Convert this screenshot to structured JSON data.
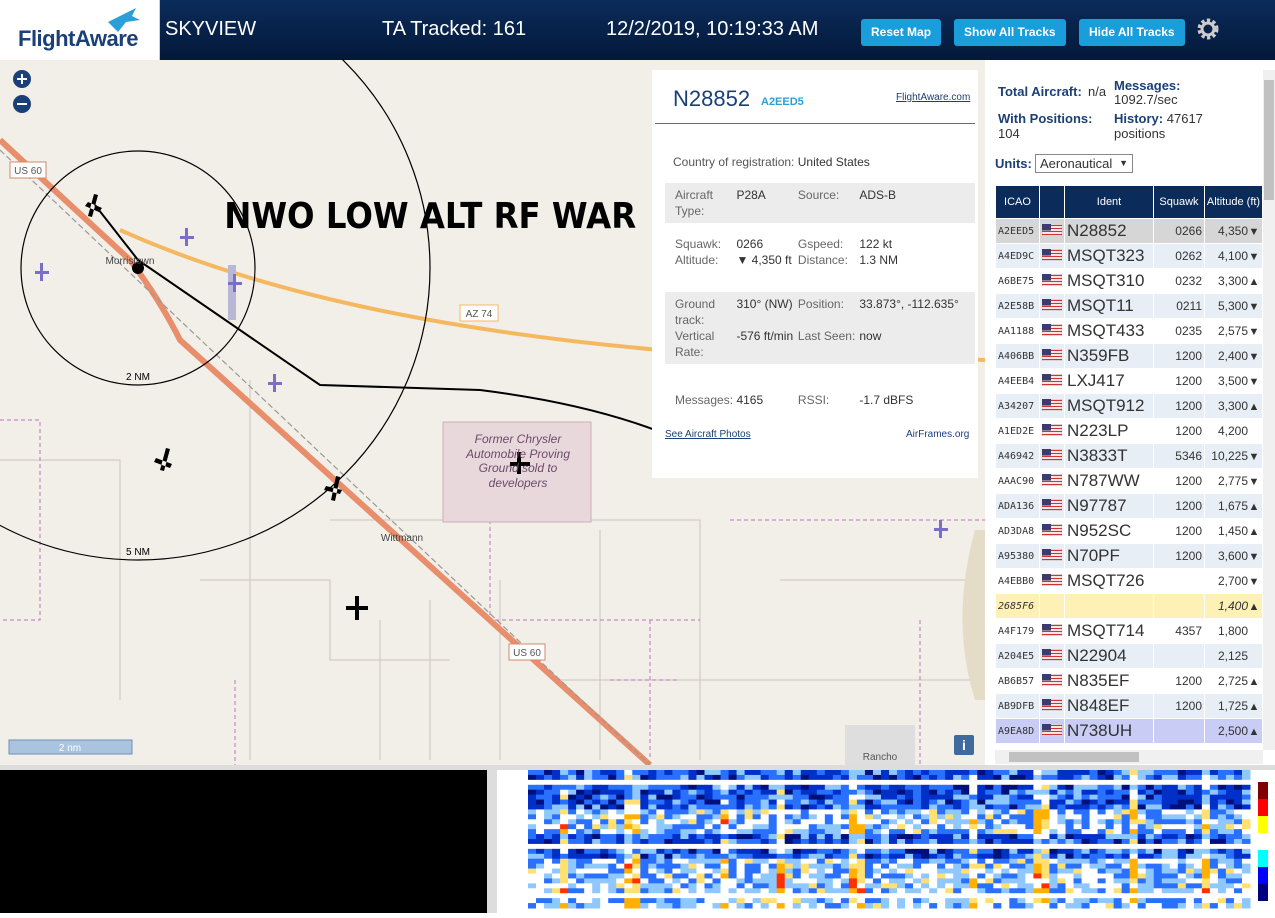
{
  "header": {
    "logo": "FlightAware",
    "app_name": "SKYVIEW",
    "tracked": "TA Tracked: 161",
    "datetime": "12/2/2019, 10:19:33 AM",
    "buttons": [
      "Reset Map",
      "Show All Tracks",
      "Hide All Tracks"
    ]
  },
  "map": {
    "overlay_text": "NWO LOW ALT RF WAR",
    "labels": {
      "us60_north": "US 60",
      "town": "Morristown",
      "ring_small": "2 NM",
      "ring_large": "5 NM",
      "az74": "AZ 74",
      "proving_ground": "Former Chrysler Automobile Proving Ground sold to developers",
      "wittmann": "Wittmann",
      "us60_south": "US 60",
      "rancho": "Rancho"
    },
    "scale": "2 nm",
    "info_button": "i"
  },
  "aircraft_info": {
    "registration": "N28852",
    "hex": "A2EED5",
    "link": "FlightAware.com",
    "country_label": "Country of registration:",
    "country": "United States",
    "fields": [
      [
        "Aircraft Type:",
        "P28A",
        "Source:",
        "ADS-B"
      ],
      [
        "Squawk:",
        "0266",
        "Gspeed:",
        "122 kt"
      ],
      [
        "Altitude:",
        "▼ 4,350 ft",
        "Distance:",
        "1.3 NM"
      ],
      [
        "Ground track:",
        "310° (NW)",
        "Position:",
        "33.873°, -112.635°"
      ],
      [
        "Vertical Rate:",
        "-576 ft/min",
        "Last Seen:",
        "now"
      ],
      [
        "Messages:",
        "4165",
        "RSSI:",
        "-1.7 dBFS"
      ]
    ],
    "photos_link": "See Aircraft Photos",
    "airframes_link": "AirFrames.org"
  },
  "stats": {
    "total_label": "Total Aircraft:",
    "total": "n/a",
    "messages_label": "Messages:",
    "messages": "1092.7/sec",
    "positions_label": "With Positions:",
    "positions": "104",
    "history_label": "History:",
    "history": "47617 positions",
    "units_label": "Units:",
    "units": "Aeronautical"
  },
  "table": {
    "headers": [
      "ICAO",
      "Ident",
      "Squawk",
      "Altitude (ft)"
    ],
    "rows": [
      {
        "icao": "A2EED5",
        "ident": "N28852",
        "squawk": "0266",
        "altitude": "4,350",
        "trend": "▼"
      },
      {
        "icao": "A4ED9C",
        "ident": "MSQT323",
        "squawk": "0262",
        "altitude": "4,100",
        "trend": "▼"
      },
      {
        "icao": "A6BE75",
        "ident": "MSQT310",
        "squawk": "0232",
        "altitude": "3,300",
        "trend": "▲"
      },
      {
        "icao": "A2E58B",
        "ident": "MSQT11",
        "squawk": "0211",
        "altitude": "5,300",
        "trend": "▼"
      },
      {
        "icao": "AA1188",
        "ident": "MSQT433",
        "squawk": "0235",
        "altitude": "2,575",
        "trend": "▼"
      },
      {
        "icao": "A406BB",
        "ident": "N359FB",
        "squawk": "1200",
        "altitude": "2,400",
        "trend": "▼"
      },
      {
        "icao": "A4EEB4",
        "ident": "LXJ417",
        "squawk": "1200",
        "altitude": "3,500",
        "trend": "▼"
      },
      {
        "icao": "A34207",
        "ident": "MSQT912",
        "squawk": "1200",
        "altitude": "3,300",
        "trend": "▲"
      },
      {
        "icao": "A1ED2E",
        "ident": "N223LP",
        "squawk": "1200",
        "altitude": "4,200"
      },
      {
        "icao": "A46942",
        "ident": "N3833T",
        "squawk": "5346",
        "altitude": "10,225",
        "trend": "▼"
      },
      {
        "icao": "AAAC90",
        "ident": "N787WW",
        "squawk": "1200",
        "altitude": "2,775",
        "trend": "▼"
      },
      {
        "icao": "ADA136",
        "ident": "N97787",
        "squawk": "1200",
        "altitude": "1,675",
        "trend": "▲"
      },
      {
        "icao": "AD3DA8",
        "ident": "N952SC",
        "squawk": "1200",
        "altitude": "1,450",
        "trend": "▲"
      },
      {
        "icao": "A95380",
        "ident": "N70PF",
        "squawk": "1200",
        "altitude": "3,600",
        "trend": "▼"
      },
      {
        "icao": "A4EBB0",
        "ident": "MSQT726",
        "altitude": "2,700",
        "trend": "▼"
      },
      {
        "icao": "2685F6",
        "altitude": "1,400",
        "trend": "▲"
      },
      {
        "icao": "A4F179",
        "ident": "MSQT714",
        "squawk": "4357",
        "altitude": "1,800"
      },
      {
        "icao": "A204E5",
        "ident": "N22904",
        "altitude": "2,125"
      },
      {
        "icao": "AB6B57",
        "ident": "N835EF",
        "squawk": "1200",
        "altitude": "2,725",
        "trend": "▲"
      },
      {
        "icao": "AB9DFB",
        "ident": "N848EF",
        "squawk": "1200",
        "altitude": "1,725",
        "trend": "▲"
      },
      {
        "icao": "A9EA8D",
        "ident": "N738UH",
        "altitude": "2,500",
        "trend": "▲"
      }
    ]
  }
}
